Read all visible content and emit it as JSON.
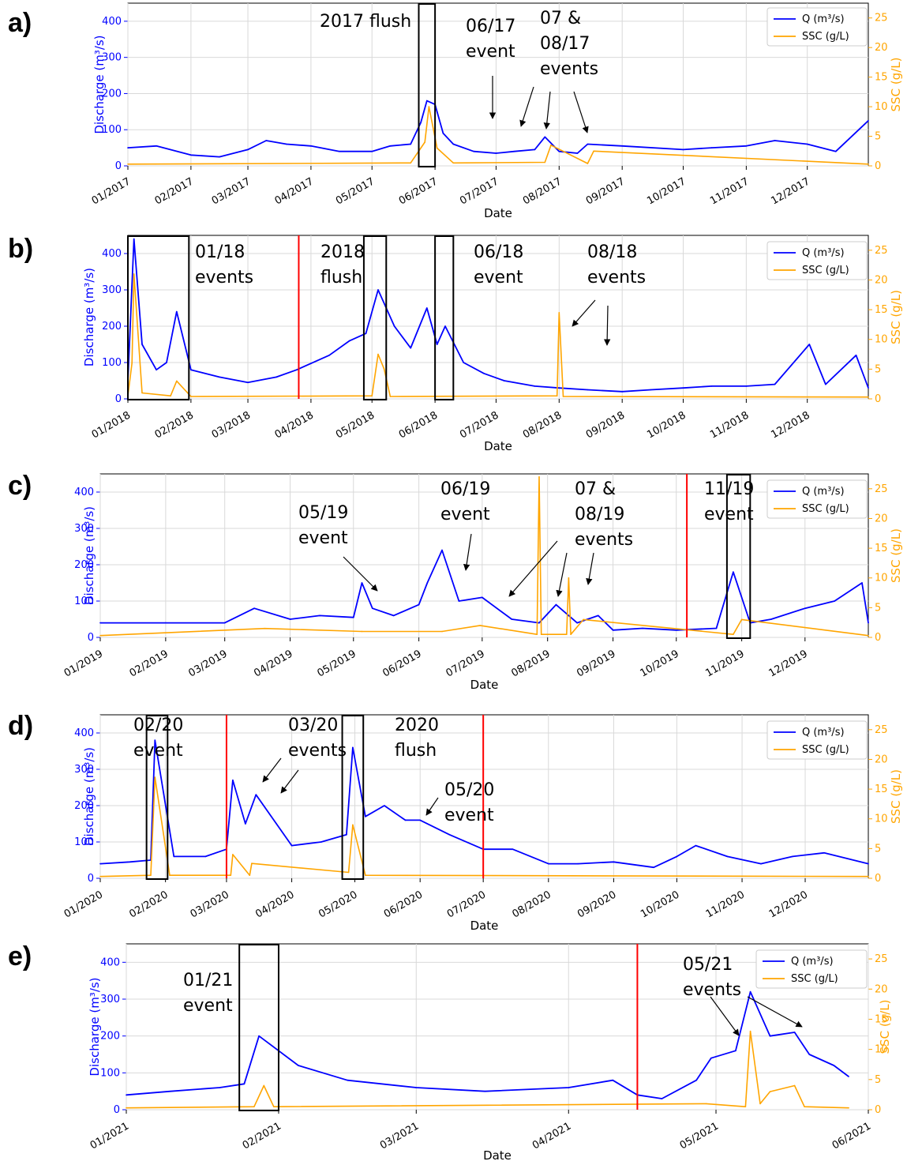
{
  "figure": {
    "colors": {
      "discharge": "#0000ff",
      "ssc": "#ffa500",
      "event_line": "#ff0000",
      "box": "#000000",
      "grid": "#d9d9d9"
    }
  },
  "chart_data": [
    {
      "panel": "a)",
      "type": "line",
      "xlabel": "Date",
      "ylabel": "Discharge (m³/s)",
      "y2label": "SSC (g/L)",
      "ylim": [
        0,
        450
      ],
      "y2lim": [
        0,
        27.5
      ],
      "yticks": [
        0,
        100,
        200,
        300,
        400
      ],
      "y2ticks": [
        0,
        5,
        10,
        15,
        20,
        25
      ],
      "x_ticks": [
        "01/2017",
        "02/2017",
        "03/2017",
        "04/2017",
        "05/2017",
        "06/2017",
        "07/2017",
        "08/2017",
        "09/2017",
        "10/2017",
        "11/2017",
        "12/2017"
      ],
      "legend": [
        "Q (m³/s)",
        "SSC (g/L)"
      ],
      "legend_position": "top-right",
      "grid": true,
      "series": [
        {
          "name": "Q (m³/s)",
          "axis": "left",
          "x": [
            "2017-01-01",
            "2017-01-15",
            "2017-02-01",
            "2017-02-15",
            "2017-03-01",
            "2017-03-10",
            "2017-03-20",
            "2017-04-01",
            "2017-04-15",
            "2017-05-01",
            "2017-05-10",
            "2017-05-20",
            "2017-05-25",
            "2017-05-28",
            "2017-06-01",
            "2017-06-05",
            "2017-06-10",
            "2017-06-20",
            "2017-07-01",
            "2017-07-10",
            "2017-07-20",
            "2017-07-25",
            "2017-08-01",
            "2017-08-10",
            "2017-08-15",
            "2017-09-01",
            "2017-10-01",
            "2017-10-15",
            "2017-11-01",
            "2017-11-15",
            "2017-12-01",
            "2017-12-15",
            "2017-12-31"
          ],
          "values": [
            50,
            55,
            30,
            25,
            45,
            70,
            60,
            55,
            40,
            40,
            55,
            60,
            120,
            180,
            170,
            90,
            60,
            40,
            35,
            40,
            45,
            80,
            40,
            35,
            60,
            55,
            45,
            50,
            55,
            70,
            60,
            40,
            125
          ]
        },
        {
          "name": "SSC (g/L)",
          "axis": "right",
          "x": [
            "2017-01-01",
            "2017-05-20",
            "2017-05-27",
            "2017-05-29",
            "2017-06-02",
            "2017-06-10",
            "2017-07-25",
            "2017-07-28",
            "2017-08-15",
            "2017-08-18",
            "2017-12-31"
          ],
          "values": [
            0.3,
            0.5,
            4,
            10,
            3,
            0.5,
            0.6,
            3.5,
            0.4,
            2.5,
            0.3
          ]
        }
      ],
      "event_lines": [],
      "boxes": [
        {
          "x0": "2017-05-24",
          "x1": "2017-06-01"
        }
      ],
      "annotations": [
        {
          "lines": [
            "2017 flush"
          ]
        },
        {
          "lines": [
            "06/17",
            "event"
          ]
        },
        {
          "lines": [
            "07 &",
            "08/17",
            "events"
          ]
        }
      ],
      "arrows": [
        {
          "from": "2017-06-28",
          "to": "2017-06-28"
        },
        {
          "from": "2017-07-19",
          "to": "2017-07-14"
        },
        {
          "from": "2017-07-29",
          "to": "2017-07-25"
        },
        {
          "from": "2017-08-15",
          "to": "2017-08-20"
        }
      ]
    },
    {
      "panel": "b)",
      "type": "line",
      "xlabel": "Date",
      "ylabel": "Discharge (m³/s)",
      "y2label": "SSC (g/L)",
      "ylim": [
        0,
        450
      ],
      "y2lim": [
        0,
        27.5
      ],
      "yticks": [
        0,
        100,
        200,
        300,
        400
      ],
      "y2ticks": [
        0,
        5,
        10,
        15,
        20,
        25
      ],
      "x_ticks": [
        "01/2018",
        "02/2018",
        "03/2018",
        "04/2018",
        "05/2018",
        "06/2018",
        "07/2018",
        "08/2018",
        "09/2018",
        "10/2018",
        "11/2018",
        "12/2018"
      ],
      "legend": [
        "Q (m³/s)",
        "SSC (g/L)"
      ],
      "legend_position": "top-right",
      "grid": true,
      "series": [
        {
          "name": "Q (m³/s)",
          "axis": "left",
          "x": [
            "2018-01-01",
            "2018-01-04",
            "2018-01-08",
            "2018-01-15",
            "2018-01-20",
            "2018-01-25",
            "2018-02-01",
            "2018-02-15",
            "2018-03-01",
            "2018-03-15",
            "2018-03-25",
            "2018-04-10",
            "2018-04-20",
            "2018-04-28",
            "2018-05-04",
            "2018-05-12",
            "2018-05-20",
            "2018-05-28",
            "2018-06-02",
            "2018-06-06",
            "2018-06-15",
            "2018-06-25",
            "2018-07-05",
            "2018-07-20",
            "2018-08-01",
            "2018-08-15",
            "2018-09-01",
            "2018-09-15",
            "2018-10-01",
            "2018-10-15",
            "2018-11-01",
            "2018-11-15",
            "2018-12-02",
            "2018-12-10",
            "2018-12-25",
            "2018-12-31"
          ],
          "values": [
            50,
            440,
            150,
            80,
            100,
            240,
            80,
            60,
            45,
            60,
            80,
            120,
            160,
            180,
            300,
            200,
            140,
            250,
            150,
            200,
            100,
            70,
            50,
            35,
            30,
            25,
            20,
            25,
            30,
            35,
            35,
            40,
            150,
            40,
            120,
            30
          ]
        },
        {
          "name": "SSC (g/L)",
          "axis": "right",
          "x": [
            "2018-01-01",
            "2018-01-03",
            "2018-01-04",
            "2018-01-08",
            "2018-01-22",
            "2018-01-25",
            "2018-02-01",
            "2018-05-01",
            "2018-05-04",
            "2018-05-07",
            "2018-05-10",
            "2018-07-31",
            "2018-08-01",
            "2018-08-03",
            "2018-12-31"
          ],
          "values": [
            0.5,
            6,
            21,
            1,
            0.5,
            3,
            0.4,
            0.5,
            7.5,
            5,
            0.4,
            0.5,
            14.5,
            0.4,
            0.3
          ]
        }
      ],
      "event_lines": [
        "2018-03-26"
      ],
      "boxes": [
        {
          "x0": "2018-01-01",
          "x1": "2018-01-31"
        },
        {
          "x0": "2018-04-27",
          "x1": "2018-05-08"
        },
        {
          "x0": "2018-06-01",
          "x1": "2018-06-10"
        }
      ],
      "annotations": [
        {
          "lines": [
            "01/18",
            "events"
          ]
        },
        {
          "lines": [
            "2018",
            "flush"
          ]
        },
        {
          "lines": [
            "06/18",
            "event"
          ]
        },
        {
          "lines": [
            "08/18",
            "events"
          ]
        }
      ],
      "arrows": [
        {
          "from": "2018-08-09",
          "to": "2018-08-05"
        },
        {
          "from": "2018-08-22",
          "to": "2018-08-22"
        }
      ]
    },
    {
      "panel": "c)",
      "type": "line",
      "xlabel": "Date",
      "ylabel": "Discharge (m³/s)",
      "y2label": "SSC (g/L)",
      "ylim": [
        0,
        450
      ],
      "y2lim": [
        0,
        27.5
      ],
      "yticks": [
        0,
        100,
        200,
        300,
        400
      ],
      "y2ticks": [
        0,
        5,
        10,
        15,
        20,
        25
      ],
      "x_ticks": [
        "01/2019",
        "02/2019",
        "03/2019",
        "04/2019",
        "05/2019",
        "06/2019",
        "07/2019",
        "08/2019",
        "09/2019",
        "10/2019",
        "11/2019",
        "12/2019"
      ],
      "legend": [
        "Q (m³/s)",
        "SSC (g/L)"
      ],
      "legend_position": "top-right",
      "grid": true,
      "series": [
        {
          "name": "Q (m³/s)",
          "axis": "left",
          "x": [
            "2019-01-01",
            "2019-02-01",
            "2019-03-01",
            "2019-03-15",
            "2019-04-01",
            "2019-04-15",
            "2019-05-01",
            "2019-05-05",
            "2019-05-10",
            "2019-05-20",
            "2019-06-01",
            "2019-06-05",
            "2019-06-12",
            "2019-06-20",
            "2019-07-01",
            "2019-07-15",
            "2019-07-28",
            "2019-08-05",
            "2019-08-15",
            "2019-08-25",
            "2019-09-01",
            "2019-09-15",
            "2019-10-01",
            "2019-10-20",
            "2019-10-28",
            "2019-11-05",
            "2019-11-15",
            "2019-12-01",
            "2019-12-15",
            "2019-12-28",
            "2019-12-31"
          ],
          "values": [
            40,
            40,
            40,
            80,
            50,
            60,
            55,
            150,
            80,
            60,
            90,
            150,
            240,
            100,
            110,
            50,
            40,
            90,
            40,
            60,
            20,
            25,
            20,
            25,
            180,
            40,
            50,
            80,
            100,
            150,
            40
          ]
        },
        {
          "name": "SSC (g/L)",
          "axis": "right",
          "x": [
            "2019-01-01",
            "2019-03-20",
            "2019-05-05",
            "2019-06-12",
            "2019-06-30",
            "2019-07-27",
            "2019-07-28",
            "2019-07-29",
            "2019-08-10",
            "2019-08-11",
            "2019-08-12",
            "2019-08-18",
            "2019-10-28",
            "2019-11-01",
            "2019-12-31"
          ],
          "values": [
            0.3,
            1.5,
            1,
            1,
            2,
            0.5,
            27,
            0.5,
            0.5,
            10,
            0.5,
            3,
            0.5,
            3,
            0.3
          ]
        }
      ],
      "event_lines": [
        "2019-10-06"
      ],
      "boxes": [
        {
          "x0": "2019-10-25",
          "x1": "2019-11-05"
        }
      ],
      "annotations": [
        {
          "lines": [
            "05/19",
            "event"
          ]
        },
        {
          "lines": [
            "06/19",
            "event"
          ]
        },
        {
          "lines": [
            "07 &",
            "08/19",
            "events"
          ]
        },
        {
          "lines": [
            "11/19",
            "event"
          ]
        }
      ],
      "arrows": [
        {
          "from": "2019-04-22",
          "to": "2019-05-02"
        },
        {
          "from": "2019-06-15",
          "to": "2019-06-13"
        },
        {
          "from": "2019-07-28",
          "to": "2019-07-06"
        },
        {
          "from": "2019-08-05",
          "to": "2019-07-30"
        },
        {
          "from": "2019-08-15",
          "to": "2019-08-14"
        }
      ]
    },
    {
      "panel": "d)",
      "type": "line",
      "xlabel": "Date",
      "ylabel": "Discharge (m³/s)",
      "y2label": "SSC (g/L)",
      "ylim": [
        0,
        450
      ],
      "y2lim": [
        0,
        27.5
      ],
      "yticks": [
        0,
        100,
        200,
        300,
        400
      ],
      "y2ticks": [
        0,
        5,
        10,
        15,
        20,
        25
      ],
      "x_ticks": [
        "01/2020",
        "02/2020",
        "03/2020",
        "04/2020",
        "05/2020",
        "06/2020",
        "07/2020",
        "08/2020",
        "09/2020",
        "10/2020",
        "11/2020",
        "12/2020"
      ],
      "legend": [
        "Q (m³/s)",
        "SSC (g/L)"
      ],
      "legend_position": "top-right",
      "grid": true,
      "series": [
        {
          "name": "Q (m³/s)",
          "axis": "left",
          "x": [
            "2020-01-01",
            "2020-01-15",
            "2020-01-25",
            "2020-01-27",
            "2020-02-05",
            "2020-02-20",
            "2020-03-01",
            "2020-03-04",
            "2020-03-10",
            "2020-03-15",
            "2020-04-01",
            "2020-04-15",
            "2020-04-27",
            "2020-04-30",
            "2020-05-06",
            "2020-05-15",
            "2020-05-25",
            "2020-06-01",
            "2020-06-15",
            "2020-07-01",
            "2020-07-15",
            "2020-08-01",
            "2020-08-15",
            "2020-09-01",
            "2020-09-20",
            "2020-10-01",
            "2020-10-10",
            "2020-10-25",
            "2020-11-10",
            "2020-11-25",
            "2020-12-10",
            "2020-12-31"
          ],
          "values": [
            40,
            45,
            50,
            380,
            60,
            60,
            80,
            270,
            150,
            230,
            90,
            100,
            120,
            360,
            170,
            200,
            160,
            160,
            120,
            80,
            80,
            40,
            40,
            45,
            30,
            60,
            90,
            60,
            40,
            60,
            70,
            40
          ]
        },
        {
          "name": "SSC (g/L)",
          "axis": "right",
          "x": [
            "2020-01-01",
            "2020-01-25",
            "2020-01-27",
            "2020-02-03",
            "2020-03-03",
            "2020-03-04",
            "2020-03-12",
            "2020-03-13",
            "2020-04-28",
            "2020-04-30",
            "2020-05-06",
            "2020-12-31"
          ],
          "values": [
            0.3,
            0.5,
            17,
            0.5,
            0.5,
            4,
            0.5,
            2.5,
            1,
            9,
            0.5,
            0.3
          ]
        }
      ],
      "event_lines": [
        "2020-03-01",
        "2020-07-01"
      ],
      "boxes": [
        {
          "x0": "2020-01-23",
          "x1": "2020-02-02"
        },
        {
          "x0": "2020-04-25",
          "x1": "2020-05-05"
        }
      ],
      "annotations": [
        {
          "lines": [
            "02/20",
            "event"
          ]
        },
        {
          "lines": [
            "03/20",
            "events"
          ]
        },
        {
          "lines": [
            "2020",
            "flush"
          ]
        },
        {
          "lines": [
            "05/20",
            "event"
          ]
        }
      ],
      "arrows": [
        {
          "from": "2020-03-10",
          "to": "2020-03-04"
        },
        {
          "from": "2020-03-20",
          "to": "2020-03-13"
        },
        {
          "from": "2020-05-26",
          "to": "2020-05-22"
        }
      ]
    },
    {
      "panel": "e)",
      "type": "line",
      "xlabel": "Date",
      "ylabel": "Discharge (m³/s)",
      "y2label": "SSC (g/L)",
      "ylim": [
        0,
        450
      ],
      "y2lim": [
        0,
        27.5
      ],
      "yticks": [
        0,
        100,
        200,
        300,
        400
      ],
      "y2ticks": [
        0,
        5,
        10,
        15,
        20,
        25
      ],
      "x_ticks": [
        "01/2021",
        "02/2021",
        "03/2021",
        "04/2021",
        "05/2021",
        "06/2021"
      ],
      "legend": [
        "Q (m³/s)",
        "SSC (g/L)"
      ],
      "legend_position": "top-right",
      "grid": true,
      "series": [
        {
          "name": "Q (m³/s)",
          "axis": "left",
          "x": [
            "2021-01-01",
            "2021-01-10",
            "2021-01-20",
            "2021-01-25",
            "2021-01-28",
            "2021-02-05",
            "2021-02-15",
            "2021-03-01",
            "2021-03-15",
            "2021-04-01",
            "2021-04-10",
            "2021-04-15",
            "2021-04-20",
            "2021-04-27",
            "2021-04-30",
            "2021-05-05",
            "2021-05-08",
            "2021-05-12",
            "2021-05-17",
            "2021-05-20",
            "2021-05-25",
            "2021-05-28"
          ],
          "values": [
            40,
            50,
            60,
            70,
            200,
            120,
            80,
            60,
            50,
            60,
            80,
            40,
            30,
            80,
            140,
            160,
            320,
            200,
            210,
            150,
            120,
            90
          ]
        },
        {
          "name": "SSC (g/L)",
          "axis": "right",
          "x": [
            "2021-01-01",
            "2021-01-27",
            "2021-01-29",
            "2021-01-31",
            "2021-04-29",
            "2021-05-07",
            "2021-05-08",
            "2021-05-10",
            "2021-05-12",
            "2021-05-17",
            "2021-05-19",
            "2021-05-28"
          ],
          "values": [
            0.3,
            0.5,
            4,
            0.5,
            1,
            0.5,
            13,
            1,
            3,
            4,
            0.5,
            0.3
          ]
        }
      ],
      "event_lines": [
        "2021-04-15"
      ],
      "boxes": [
        {
          "x0": "2021-01-24",
          "x1": "2021-02-01"
        }
      ],
      "annotations": [
        {
          "lines": [
            "01/21",
            "event"
          ]
        },
        {
          "lines": [
            "05/21",
            "events"
          ]
        }
      ],
      "arrows": [
        {
          "from": "2021-05-01",
          "to": "2021-05-06"
        },
        {
          "from": "2021-05-11",
          "to": "2021-05-19"
        }
      ]
    }
  ]
}
